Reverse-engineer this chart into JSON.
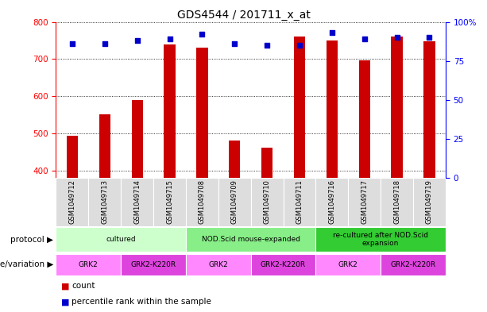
{
  "title": "GDS4544 / 201711_x_at",
  "samples": [
    "GSM1049712",
    "GSM1049713",
    "GSM1049714",
    "GSM1049715",
    "GSM1049708",
    "GSM1049709",
    "GSM1049710",
    "GSM1049711",
    "GSM1049716",
    "GSM1049717",
    "GSM1049718",
    "GSM1049719"
  ],
  "counts": [
    494,
    550,
    590,
    740,
    730,
    480,
    462,
    760,
    750,
    697,
    760,
    748
  ],
  "percentiles": [
    86,
    86,
    88,
    89,
    92,
    86,
    85,
    85,
    93,
    89,
    90,
    90
  ],
  "ylim_left": [
    380,
    800
  ],
  "ylim_right": [
    0,
    100
  ],
  "yticks_left": [
    400,
    500,
    600,
    700,
    800
  ],
  "yticks_right": [
    0,
    25,
    50,
    75,
    100
  ],
  "bar_color": "#CC0000",
  "dot_color": "#0000CC",
  "protocol_groups": [
    {
      "label": "cultured",
      "start": 0,
      "end": 3,
      "color": "#CCFFCC"
    },
    {
      "label": "NOD.Scid mouse-expanded",
      "start": 4,
      "end": 7,
      "color": "#88EE88"
    },
    {
      "label": "re-cultured after NOD.Scid\nexpansion",
      "start": 8,
      "end": 11,
      "color": "#33CC33"
    }
  ],
  "genotype_groups": [
    {
      "label": "GRK2",
      "start": 0,
      "end": 1,
      "color": "#FF88FF"
    },
    {
      "label": "GRK2-K220R",
      "start": 2,
      "end": 3,
      "color": "#DD44DD"
    },
    {
      "label": "GRK2",
      "start": 4,
      "end": 5,
      "color": "#FF88FF"
    },
    {
      "label": "GRK2-K220R",
      "start": 6,
      "end": 7,
      "color": "#DD44DD"
    },
    {
      "label": "GRK2",
      "start": 8,
      "end": 9,
      "color": "#FF88FF"
    },
    {
      "label": "GRK2-K220R",
      "start": 10,
      "end": 11,
      "color": "#DD44DD"
    }
  ],
  "row_label_protocol": "protocol",
  "row_label_genotype": "genotype/variation",
  "legend_count": "count",
  "legend_percentile": "percentile rank within the sample",
  "fig_width": 6.13,
  "fig_height": 3.93,
  "fig_dpi": 100
}
